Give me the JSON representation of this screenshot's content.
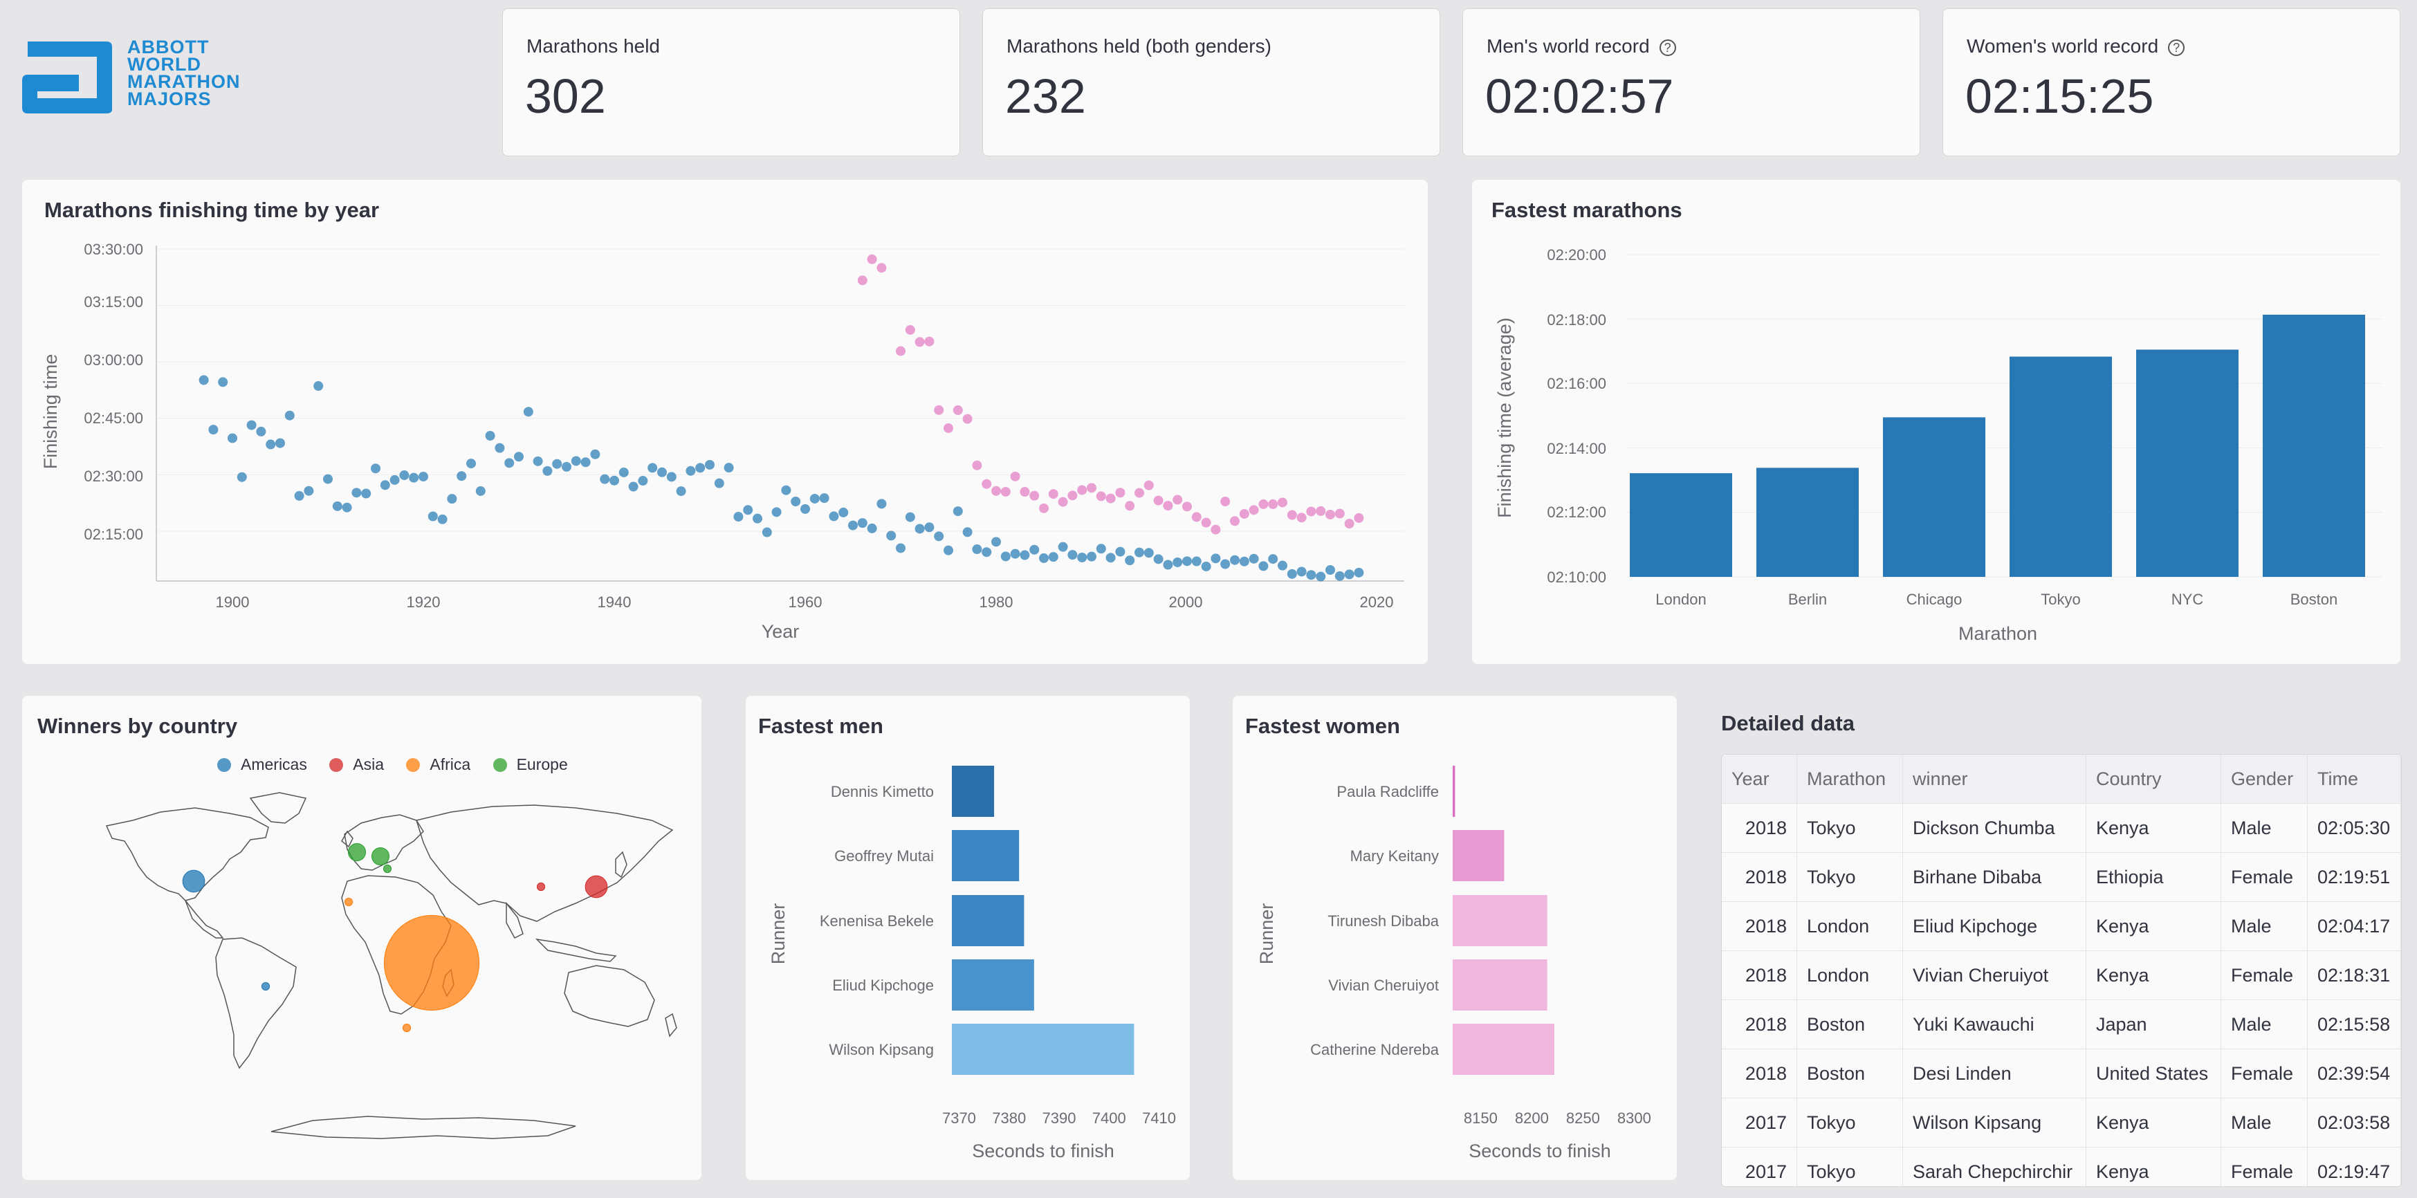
{
  "logo": {
    "lines": [
      "ABBOTT",
      "WORLD",
      "MARATHON",
      "MAJORS"
    ],
    "color": "#1e8ad2"
  },
  "metrics": [
    {
      "label": "Marathons held",
      "value": "302",
      "help": false
    },
    {
      "label": "Marathons held (both genders)",
      "value": "232",
      "help": false
    },
    {
      "label": "Men's world record",
      "value": "02:02:57",
      "help": true
    },
    {
      "label": "Women's world record",
      "value": "02:15:25",
      "help": true
    }
  ],
  "scatter": {
    "title": "Marathons finishing time by year",
    "xlabel": "Year",
    "ylabel": "Finishing time",
    "yticks": [
      "03:30:00",
      "03:15:00",
      "03:00:00",
      "02:45:00",
      "02:30:00",
      "02:15:00"
    ],
    "xticks": [
      "1900",
      "1920",
      "1940",
      "1960",
      "1980",
      "2000",
      "2020"
    ]
  },
  "fastest_marathons": {
    "title": "Fastest marathons",
    "xlabel": "Marathon",
    "ylabel": "Finishing time (average)",
    "yticks": [
      "02:20:00",
      "02:18:00",
      "02:16:00",
      "02:14:00",
      "02:12:00",
      "02:10:00"
    ]
  },
  "winners": {
    "title": "Winners by country",
    "legend": [
      {
        "name": "Americas",
        "color": "#1f77b4"
      },
      {
        "name": "Asia",
        "color": "#d62728"
      },
      {
        "name": "Africa",
        "color": "#ff7f0e"
      },
      {
        "name": "Europe",
        "color": "#2ca02c"
      }
    ]
  },
  "fastest_men": {
    "title": "Fastest men",
    "xlabel": "Seconds to finish",
    "ylabel": "Runner"
  },
  "fastest_women": {
    "title": "Fastest women",
    "xlabel": "Seconds to finish",
    "ylabel": "Runner"
  },
  "table": {
    "title": "Detailed data",
    "columns": [
      "Year",
      "Marathon",
      "winner",
      "Country",
      "Gender",
      "Time"
    ],
    "rows": [
      [
        "2018",
        "Tokyo",
        "Dickson Chumba",
        "Kenya",
        "Male",
        "02:05:30"
      ],
      [
        "2018",
        "Tokyo",
        "Birhane Dibaba",
        "Ethiopia",
        "Female",
        "02:19:51"
      ],
      [
        "2018",
        "London",
        "Eliud Kipchoge",
        "Kenya",
        "Male",
        "02:04:17"
      ],
      [
        "2018",
        "London",
        "Vivian Cheruiyot",
        "Kenya",
        "Female",
        "02:18:31"
      ],
      [
        "2018",
        "Boston",
        "Yuki Kawauchi",
        "Japan",
        "Male",
        "02:15:58"
      ],
      [
        "2018",
        "Boston",
        "Desi Linden",
        "United States",
        "Female",
        "02:39:54"
      ],
      [
        "2017",
        "Tokyo",
        "Wilson Kipsang",
        "Kenya",
        "Male",
        "02:03:58"
      ],
      [
        "2017",
        "Tokyo",
        "Sarah Chepchirchir",
        "Kenya",
        "Female",
        "02:19:47"
      ]
    ]
  },
  "chart_data": [
    {
      "type": "scatter",
      "title": "Marathons finishing time by year",
      "xlabel": "Year",
      "ylabel": "Finishing time",
      "xlim": [
        1892,
        2022
      ],
      "ylim": [
        "02:05:00",
        "03:31:00"
      ],
      "series": [
        {
          "name": "",
          "color": "#1f77b4",
          "points": [
            [
              1897,
              "02:55:10"
            ],
            [
              1898,
              "02:42:00"
            ],
            [
              1899,
              "02:54:38"
            ],
            [
              1900,
              "02:39:44"
            ],
            [
              1901,
              "02:29:23"
            ],
            [
              1902,
              "02:43:12"
            ],
            [
              1903,
              "02:41:29"
            ],
            [
              1904,
              "02:38:04"
            ],
            [
              1905,
              "02:38:25"
            ],
            [
              1906,
              "02:45:45"
            ],
            [
              1907,
              "02:24:24"
            ],
            [
              1908,
              "02:25:43"
            ],
            [
              1909,
              "02:53:36"
            ],
            [
              1910,
              "02:28:52"
            ],
            [
              1911,
              "02:21:39"
            ],
            [
              1912,
              "02:21:18"
            ],
            [
              1913,
              "02:25:14"
            ],
            [
              1914,
              "02:25:01"
            ],
            [
              1915,
              "02:31:41"
            ],
            [
              1916,
              "02:27:16"
            ],
            [
              1917,
              "02:28:37"
            ],
            [
              1918,
              "02:29:53"
            ],
            [
              1919,
              "02:29:13"
            ],
            [
              1920,
              "02:29:31"
            ],
            [
              1921,
              "02:18:57"
            ],
            [
              1922,
              "02:18:10"
            ],
            [
              1923,
              "02:23:37"
            ],
            [
              1924,
              "02:29:40"
            ],
            [
              1925,
              "02:33:00"
            ],
            [
              1926,
              "02:25:40"
            ],
            [
              1927,
              "02:40:22"
            ],
            [
              1928,
              "02:37:07"
            ],
            [
              1929,
              "02:33:08"
            ],
            [
              1930,
              "02:34:48"
            ],
            [
              1931,
              "02:46:45"
            ],
            [
              1932,
              "02:33:36"
            ],
            [
              1933,
              "02:31:01"
            ],
            [
              1934,
              "02:32:53"
            ],
            [
              1935,
              "02:32:07"
            ],
            [
              1936,
              "02:33:40"
            ],
            [
              1937,
              "02:33:20"
            ],
            [
              1938,
              "02:35:27"
            ],
            [
              1939,
              "02:28:51"
            ],
            [
              1940,
              "02:28:28"
            ],
            [
              1941,
              "02:30:38"
            ],
            [
              1942,
              "02:26:51"
            ],
            [
              1943,
              "02:28:25"
            ],
            [
              1944,
              "02:31:50"
            ],
            [
              1945,
              "02:30:40"
            ],
            [
              1946,
              "02:29:27"
            ],
            [
              1947,
              "02:25:39"
            ],
            [
              1948,
              "02:31:02"
            ],
            [
              1949,
              "02:31:50"
            ],
            [
              1950,
              "02:32:39"
            ],
            [
              1951,
              "02:27:45"
            ],
            [
              1952,
              "02:31:53"
            ],
            [
              1953,
              "02:18:51"
            ],
            [
              1954,
              "02:20:39"
            ],
            [
              1955,
              "02:18:22"
            ],
            [
              1956,
              "02:14:43"
            ],
            [
              1957,
              "02:20:05"
            ],
            [
              1958,
              "02:25:54"
            ],
            [
              1959,
              "02:22:54"
            ],
            [
              1960,
              "02:20:54"
            ],
            [
              1961,
              "02:23:39"
            ],
            [
              1962,
              "02:23:48"
            ],
            [
              1963,
              "02:18:58"
            ],
            [
              1964,
              "02:19:59"
            ],
            [
              1965,
              "02:16:33"
            ],
            [
              1966,
              "02:17:11"
            ],
            [
              1967,
              "02:15:45"
            ],
            [
              1968,
              "02:22:17"
            ],
            [
              1969,
              "02:13:49"
            ],
            [
              1970,
              "02:10:30"
            ],
            [
              1971,
              "02:18:45"
            ],
            [
              1972,
              "02:15:39"
            ],
            [
              1973,
              "02:16:03"
            ],
            [
              1974,
              "02:13:39"
            ],
            [
              1975,
              "02:09:55"
            ],
            [
              1976,
              "02:20:19"
            ],
            [
              1977,
              "02:14:46"
            ],
            [
              1978,
              "02:10:13"
            ],
            [
              1979,
              "02:09:27"
            ],
            [
              1980,
              "02:12:11"
            ],
            [
              1981,
              "02:08:18"
            ],
            [
              1982,
              "02:09:00"
            ],
            [
              1983,
              "02:08:39"
            ],
            [
              1984,
              "02:10:05"
            ],
            [
              1985,
              "02:07:51"
            ],
            [
              1986,
              "02:08:10"
            ],
            [
              1987,
              "02:10:50"
            ],
            [
              1988,
              "02:08:43"
            ],
            [
              1989,
              "02:08:01"
            ],
            [
              1990,
              "02:08:16"
            ],
            [
              1991,
              "02:10:21"
            ],
            [
              1992,
              "02:07:57"
            ],
            [
              1993,
              "02:09:33"
            ],
            [
              1994,
              "02:07:15"
            ],
            [
              1995,
              "02:09:22"
            ],
            [
              1996,
              "02:09:15"
            ],
            [
              1997,
              "02:07:35"
            ],
            [
              1998,
              "02:06:05"
            ],
            [
              1999,
              "02:06:44"
            ],
            [
              2000,
              "02:07:02"
            ],
            [
              2001,
              "02:07:00"
            ],
            [
              2002,
              "02:05:38"
            ],
            [
              2003,
              "02:07:46"
            ],
            [
              2004,
              "02:06:16"
            ],
            [
              2005,
              "02:07:20"
            ],
            [
              2006,
              "02:06:58"
            ],
            [
              2007,
              "02:07:41"
            ],
            [
              2008,
              "02:05:44"
            ],
            [
              2009,
              "02:07:38"
            ],
            [
              2010,
              "02:05:52"
            ],
            [
              2011,
              "02:03:38"
            ],
            [
              2012,
              "02:04:15"
            ],
            [
              2013,
              "02:03:23"
            ],
            [
              2014,
              "02:02:57"
            ],
            [
              2015,
              "02:04:42"
            ],
            [
              2016,
              "02:03:05"
            ],
            [
              2017,
              "02:03:32"
            ],
            [
              2018,
              "02:04:00"
            ]
          ]
        },
        {
          "name": "",
          "color": "#e377c2",
          "points": [
            [
              1966,
              "03:21:40"
            ],
            [
              1967,
              "03:27:17"
            ],
            [
              1968,
              "03:25:00"
            ],
            [
              1970,
              "03:02:53"
            ],
            [
              1971,
              "03:08:30"
            ],
            [
              1972,
              "03:05:18"
            ],
            [
              1973,
              "03:05:25"
            ],
            [
              1974,
              "02:47:11"
            ],
            [
              1975,
              "02:42:24"
            ],
            [
              1976,
              "02:47:10"
            ],
            [
              1977,
              "02:44:51"
            ],
            [
              1978,
              "02:32:30"
            ],
            [
              1979,
              "02:27:33"
            ],
            [
              1980,
              "02:25:42"
            ],
            [
              1981,
              "02:25:29"
            ],
            [
              1982,
              "02:29:33"
            ],
            [
              1983,
              "02:25:28"
            ],
            [
              1984,
              "02:24:26"
            ],
            [
              1985,
              "02:21:06"
            ],
            [
              1986,
              "02:24:54"
            ],
            [
              1987,
              "02:22:48"
            ],
            [
              1988,
              "02:24:30"
            ],
            [
              1989,
              "02:25:56"
            ],
            [
              1990,
              "02:26:31"
            ],
            [
              1991,
              "02:24:18"
            ],
            [
              1992,
              "02:23:43"
            ],
            [
              1993,
              "02:25:15"
            ],
            [
              1994,
              "02:21:45"
            ],
            [
              1995,
              "02:25:11"
            ],
            [
              1996,
              "02:27:12"
            ],
            [
              1997,
              "02:23:10"
            ],
            [
              1998,
              "02:21:47"
            ],
            [
              1999,
              "02:23:22"
            ],
            [
              2000,
              "02:21:33"
            ],
            [
              2001,
              "02:18:47"
            ],
            [
              2002,
              "02:17:18"
            ],
            [
              2003,
              "02:15:25"
            ],
            [
              2004,
              "02:22:54"
            ],
            [
              2005,
              "02:17:42"
            ],
            [
              2006,
              "02:19:36"
            ],
            [
              2007,
              "02:20:38"
            ],
            [
              2008,
              "02:22:11"
            ],
            [
              2009,
              "02:22:11"
            ],
            [
              2010,
              "02:22:38"
            ],
            [
              2011,
              "02:19:19"
            ],
            [
              2012,
              "02:18:37"
            ],
            [
              2013,
              "02:20:15"
            ],
            [
              2014,
              "02:20:21"
            ],
            [
              2015,
              "02:19:25"
            ],
            [
              2016,
              "02:19:41"
            ],
            [
              2017,
              "02:17:01"
            ],
            [
              2018,
              "02:18:31"
            ]
          ]
        }
      ]
    },
    {
      "type": "bar",
      "title": "Fastest marathons",
      "xlabel": "Marathon",
      "ylabel": "Finishing time (average)",
      "categories": [
        "London",
        "Berlin",
        "Chicago",
        "Tokyo",
        "NYC",
        "Boston"
      ],
      "values": [
        "02:13:13",
        "02:13:23",
        "02:14:57",
        "02:16:50",
        "02:17:03",
        "02:18:08"
      ],
      "ylim": [
        "02:10:00",
        "02:20:00"
      ],
      "color": "#2878b5"
    },
    {
      "type": "bar",
      "orientation": "horizontal",
      "title": "Fastest men",
      "xlabel": "Seconds to finish",
      "ylabel": "Runner",
      "categories": [
        "Dennis Kimetto",
        "Geoffrey Mutai",
        "Kenenisa Bekele",
        "Eliud Kipchoge",
        "Wilson Kipsang"
      ],
      "values": [
        7377,
        7382,
        7383,
        7385,
        7405
      ],
      "colors": [
        "#2b70ad",
        "#3a85c2",
        "#3a85c2",
        "#4a92cc",
        "#80bde6"
      ],
      "xlim": [
        7368,
        7412
      ],
      "xticks": [
        7370,
        7380,
        7390,
        7400,
        7410
      ]
    },
    {
      "type": "bar",
      "orientation": "horizontal",
      "title": "Fastest women",
      "xlabel": "Seconds to finish",
      "ylabel": "Runner",
      "categories": [
        "Paula Radcliffe",
        "Mary Keitany",
        "Tirunesh Dibaba",
        "Vivian Cheruiyot",
        "Catherine Ndereba"
      ],
      "values": [
        8125,
        8173,
        8215,
        8215,
        8222
      ],
      "colors": [
        "#dc6fc2",
        "#e89ad4",
        "#f0b6de",
        "#f0b6de",
        "#f0b6de"
      ],
      "xlim": [
        8120,
        8320
      ],
      "xticks": [
        8150,
        8200,
        8250,
        8300
      ]
    },
    {
      "type": "map",
      "title": "Winners by country",
      "bubbles": [
        {
          "country": "United States",
          "group": "Americas",
          "count": 8
        },
        {
          "country": "Brazil",
          "group": "Americas",
          "count": 1
        },
        {
          "country": "Japan",
          "group": "Asia",
          "count": 8
        },
        {
          "country": "China",
          "group": "Asia",
          "count": 1
        },
        {
          "country": "Kenya",
          "group": "Africa",
          "count": 150
        },
        {
          "country": "Morocco",
          "group": "Africa",
          "count": 1
        },
        {
          "country": "South Africa",
          "group": "Africa",
          "count": 1
        },
        {
          "country": "Germany",
          "group": "Europe",
          "count": 5
        },
        {
          "country": "United Kingdom",
          "group": "Europe",
          "count": 5
        },
        {
          "country": "Italy",
          "group": "Europe",
          "count": 1
        }
      ]
    }
  ]
}
